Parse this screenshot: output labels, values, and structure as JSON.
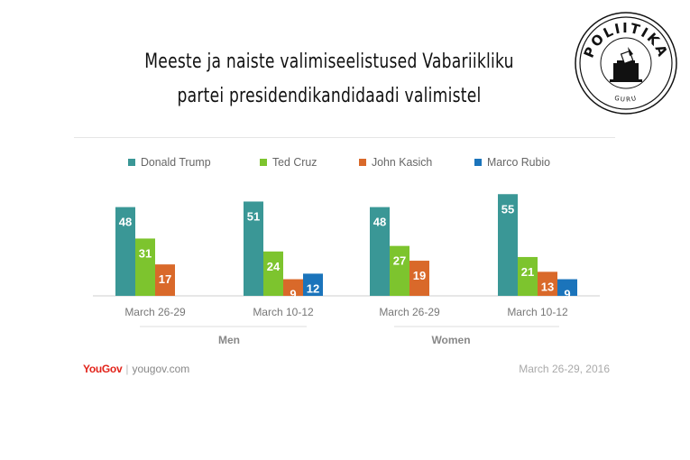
{
  "title": {
    "line1": "Meeste ja naiste valimiseelistused Vabariikliku",
    "line2": "partei presidendikandidaadi valimistel"
  },
  "logo": {
    "text": "POLIITIKA",
    "subtext": "GURU",
    "icon": "ballot-box-icon"
  },
  "chart_data": {
    "type": "bar",
    "title": "",
    "ylim": [
      0,
      60
    ],
    "grid": false,
    "legend_position": "top",
    "groups": [
      {
        "name": "Men",
        "subgroups": [
          {
            "label": "March 26-29",
            "values": [
              48,
              31,
              17,
              null
            ]
          },
          {
            "label": "March 10-12",
            "values": [
              51,
              24,
              9,
              12
            ]
          }
        ]
      },
      {
        "name": "Women",
        "subgroups": [
          {
            "label": "March 26-29",
            "values": [
              48,
              27,
              19,
              null
            ]
          },
          {
            "label": "March 10-12",
            "values": [
              55,
              21,
              13,
              9
            ]
          }
        ]
      }
    ],
    "series": [
      {
        "name": "Donald Trump",
        "color": "#3a9796"
      },
      {
        "name": "Ted Cruz",
        "color": "#7dc42e"
      },
      {
        "name": "John Kasich",
        "color": "#d9692a"
      },
      {
        "name": "Marco Rubio",
        "color": "#1b74bb"
      }
    ]
  },
  "footer": {
    "brand": "YouGov",
    "separator": "|",
    "site": "yougov.com",
    "date": "March 26-29, 2016"
  }
}
